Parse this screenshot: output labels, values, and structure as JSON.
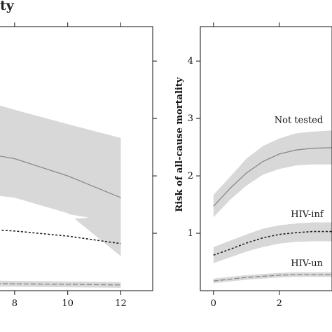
{
  "title_fragment": "ty",
  "chart_data": [
    {
      "type": "area",
      "panel": "left",
      "xlim": [
        6.5,
        13.2
      ],
      "ylim": [
        0,
        4.6
      ],
      "x_ticks": [
        8,
        10,
        12
      ],
      "x_tick_labels": [
        "8",
        "10",
        "12"
      ],
      "series": [
        {
          "style": "solid",
          "x": [
            6.5,
            8,
            10,
            12
          ],
          "y": [
            2.42,
            2.3,
            2.0,
            1.62
          ],
          "band": {
            "upper": [
              3.35,
              3.15,
              2.9,
              2.66
            ],
            "lower": [
              1.7,
              1.62,
              1.35,
              0.6
            ]
          }
        },
        {
          "style": "dotted",
          "x": [
            6.5,
            8,
            10,
            12
          ],
          "y": [
            1.08,
            1.04,
            0.95,
            0.82
          ],
          "band": null
        },
        {
          "style": "dashed",
          "x": [
            6.5,
            8,
            10,
            12
          ],
          "y": [
            0.13,
            0.12,
            0.11,
            0.1
          ],
          "band": {
            "upper": [
              0.18,
              0.17,
              0.16,
              0.15
            ],
            "lower": [
              0.08,
              0.07,
              0.06,
              0.05
            ]
          }
        }
      ]
    },
    {
      "type": "area",
      "panel": "right",
      "ylabel": "Risk of all-cause mortality",
      "xlim": [
        -0.4,
        3.6
      ],
      "ylim": [
        0,
        4.6
      ],
      "x_ticks": [
        0,
        2
      ],
      "x_tick_labels": [
        "0",
        "2"
      ],
      "y_ticks": [
        1,
        2,
        3,
        4
      ],
      "y_tick_labels": [
        "1",
        "2",
        "3",
        "4"
      ],
      "series": [
        {
          "name": "Not tested",
          "style": "solid",
          "x": [
            0,
            0.5,
            1,
            1.5,
            2,
            2.5,
            3,
            3.6
          ],
          "y": [
            1.47,
            1.78,
            2.05,
            2.25,
            2.38,
            2.45,
            2.48,
            2.49
          ],
          "band": {
            "upper": [
              1.67,
              1.98,
              2.3,
              2.52,
              2.65,
              2.74,
              2.77,
              2.79
            ],
            "lower": [
              1.28,
              1.58,
              1.83,
              2.02,
              2.12,
              2.18,
              2.2,
              2.2
            ]
          }
        },
        {
          "name": "HIV-inf",
          "style": "dotted",
          "x": [
            0,
            0.5,
            1,
            1.5,
            2,
            2.5,
            3,
            3.6
          ],
          "y": [
            0.62,
            0.72,
            0.83,
            0.92,
            0.98,
            1.01,
            1.03,
            1.03
          ],
          "band": {
            "upper": [
              0.76,
              0.87,
              0.98,
              1.08,
              1.14,
              1.17,
              1.19,
              1.19
            ],
            "lower": [
              0.48,
              0.58,
              0.68,
              0.76,
              0.82,
              0.85,
              0.86,
              0.86
            ]
          }
        },
        {
          "name": "HIV-un",
          "style": "dashed",
          "x": [
            0,
            0.5,
            1,
            1.5,
            2,
            2.5,
            3,
            3.6
          ],
          "y": [
            0.17,
            0.2,
            0.23,
            0.25,
            0.27,
            0.28,
            0.28,
            0.28
          ],
          "band": {
            "upper": [
              0.21,
              0.24,
              0.27,
              0.29,
              0.31,
              0.32,
              0.32,
              0.32
            ],
            "lower": [
              0.13,
              0.16,
              0.19,
              0.21,
              0.23,
              0.24,
              0.24,
              0.24
            ]
          }
        }
      ]
    }
  ]
}
